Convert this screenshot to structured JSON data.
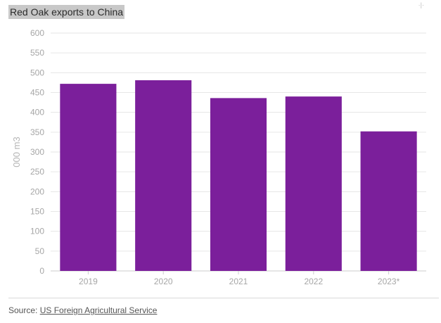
{
  "corner_mark": "·|·",
  "source": {
    "prefix": "Source: ",
    "link_text": "US Foreign Agricultural Service"
  },
  "colors": {
    "bar": "#7b1f9b",
    "grid": "#e6e6e6",
    "axis": "#cccccc",
    "title_highlight": "#c8c8c8"
  },
  "chart_data": {
    "type": "bar",
    "title": "Red Oak exports to China",
    "xlabel": "",
    "ylabel": "000 m3",
    "categories": [
      "2019",
      "2020",
      "2021",
      "2022",
      "2023*"
    ],
    "values": [
      472,
      481,
      436,
      440,
      352
    ],
    "ylim": [
      0,
      600
    ],
    "yticks": [
      0,
      50,
      100,
      150,
      200,
      250,
      300,
      350,
      400,
      450,
      500,
      550,
      600
    ],
    "grid": true,
    "legend": "none"
  }
}
